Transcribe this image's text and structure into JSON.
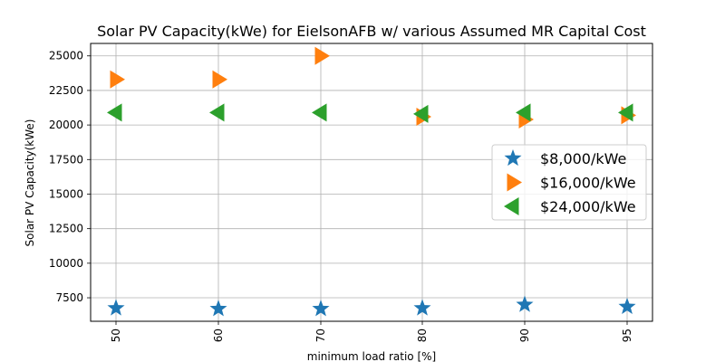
{
  "chart_data": {
    "type": "scatter",
    "title": "Solar PV Capacity(kWe) for EielsonAFB w/ various Assumed MR Capital Cost",
    "xlabel": "minimum load ratio [%]",
    "ylabel": "Solar PV Capacity(kWe)",
    "categories": [
      "50",
      "60",
      "70",
      "80",
      "90",
      "95"
    ],
    "yticks": [
      "7500",
      "10000",
      "12500",
      "15000",
      "17500",
      "20000",
      "22500",
      "25000"
    ],
    "ylim": [
      5800,
      25900
    ],
    "grid": true,
    "legend_position": "center-right",
    "series": [
      {
        "name": "$8,000/kWe",
        "marker": "star",
        "color": "#1f77b4",
        "values": [
          6750,
          6700,
          6700,
          6750,
          7000,
          6850
        ]
      },
      {
        "name": "$16,000/kWe",
        "marker": "triangle-right",
        "color": "#ff7f0e",
        "values": [
          23300,
          23300,
          25000,
          20600,
          20400,
          20700
        ]
      },
      {
        "name": "$24,000/kWe",
        "marker": "triangle-left",
        "color": "#2ca02c",
        "values": [
          20900,
          20900,
          20900,
          20800,
          20900,
          20900
        ]
      }
    ]
  }
}
